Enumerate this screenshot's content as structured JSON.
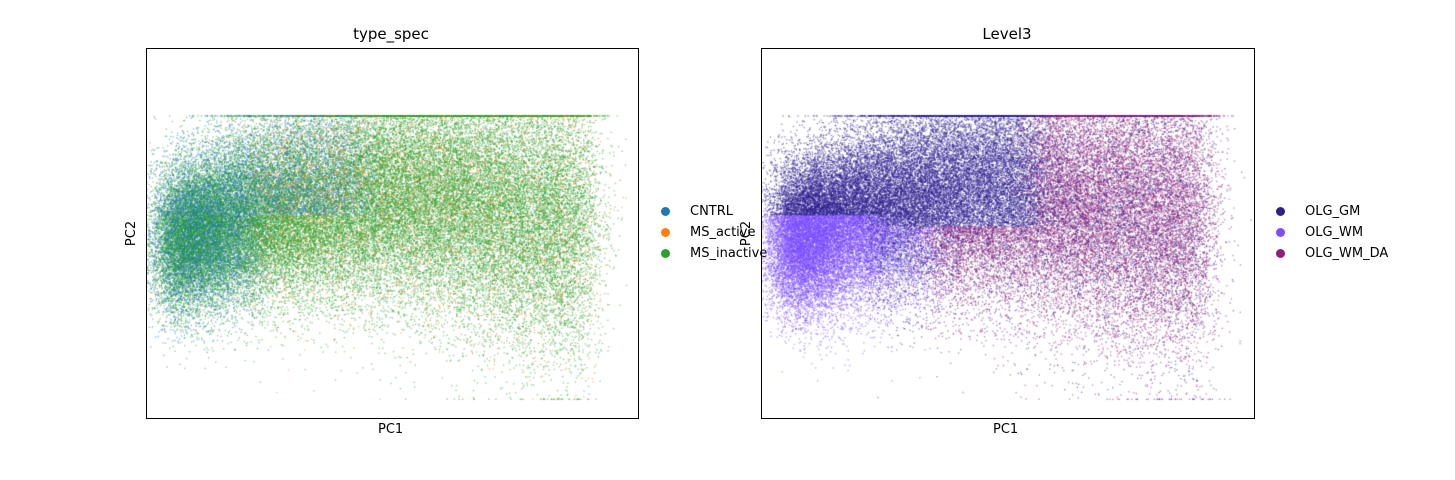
{
  "chart_data": [
    {
      "type": "scatter",
      "title": "type_spec",
      "xlabel": "PC1",
      "ylabel": "PC2",
      "xticks": [],
      "yticks": [],
      "legend_position": "right-outside",
      "series": [
        {
          "name": "CNTRL",
          "color": "#1f77b4"
        },
        {
          "name": "MS_active",
          "color": "#ff7f0e"
        },
        {
          "name": "MS_inactive",
          "color": "#2ca02c"
        }
      ]
    },
    {
      "type": "scatter",
      "title": "Level3",
      "xlabel": "PC1",
      "ylabel": "PC2",
      "xticks": [],
      "yticks": [],
      "legend_position": "right-outside",
      "series": [
        {
          "name": "OLG_GM",
          "color": "#2e1f8f"
        },
        {
          "name": "OLG_WM",
          "color": "#7b4dff"
        },
        {
          "name": "OLG_WM_DA",
          "color": "#8e1f7a"
        }
      ]
    }
  ]
}
